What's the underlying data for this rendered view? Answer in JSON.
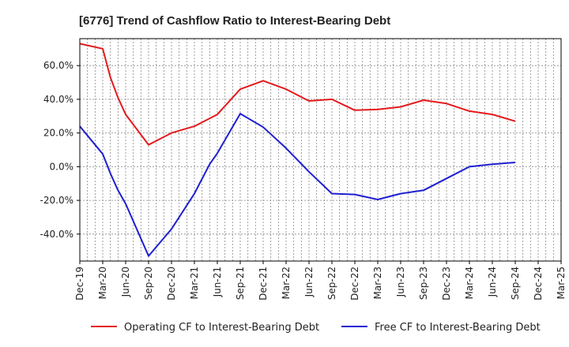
{
  "chart_data": {
    "type": "line",
    "title": "[6776]  Trend of Cashflow Ratio to Interest-Bearing Debt",
    "xlabel": "",
    "ylabel": "",
    "ylim": [
      -56,
      76
    ],
    "yticks": [
      -40,
      -20,
      0,
      20,
      40,
      60
    ],
    "ytick_labels": [
      "-40.0%",
      "-20.0%",
      "0.0%",
      "20.0%",
      "40.0%",
      "60.0%"
    ],
    "x_labels": [
      "Dec-19",
      "Mar-20",
      "Jun-20",
      "Sep-20",
      "Dec-20",
      "Mar-21",
      "Jun-21",
      "Sep-21",
      "Dec-21",
      "Mar-22",
      "Jun-22",
      "Sep-22",
      "Dec-22",
      "Mar-23",
      "Jun-23",
      "Sep-23",
      "Dec-23",
      "Mar-24",
      "Jun-24",
      "Sep-24",
      "Dec-24",
      "Mar-25"
    ],
    "x_months": [
      0,
      3,
      6,
      9,
      12,
      15,
      18,
      21,
      24,
      27,
      30,
      33,
      36,
      39,
      42,
      45,
      48,
      51,
      54,
      57,
      60,
      63
    ],
    "grid": true,
    "legend_position": "bottom",
    "series": [
      {
        "name": "Operating CF to Interest-Bearing Debt",
        "color": "#e41a1c",
        "points": [
          [
            0,
            73
          ],
          [
            3,
            70
          ],
          [
            4,
            53
          ],
          [
            5,
            41
          ],
          [
            6,
            31
          ],
          [
            9,
            13
          ],
          [
            12,
            20
          ],
          [
            15,
            24
          ],
          [
            18,
            31
          ],
          [
            21,
            46
          ],
          [
            24,
            51
          ],
          [
            27,
            46
          ],
          [
            30,
            39
          ],
          [
            33,
            40
          ],
          [
            36,
            33.5
          ],
          [
            39,
            34
          ],
          [
            42,
            35.5
          ],
          [
            45,
            39.5
          ],
          [
            48,
            37.5
          ],
          [
            51,
            33
          ],
          [
            54,
            31
          ],
          [
            57,
            27
          ]
        ]
      },
      {
        "name": "Free CF to Interest-Bearing Debt",
        "color": "#1f1fd1",
        "points": [
          [
            0,
            24
          ],
          [
            3,
            7.5
          ],
          [
            4,
            -4
          ],
          [
            5,
            -14
          ],
          [
            6,
            -22
          ],
          [
            9,
            -53
          ],
          [
            12,
            -37
          ],
          [
            15,
            -16
          ],
          [
            17,
            1.5
          ],
          [
            18,
            8
          ],
          [
            21,
            31.5
          ],
          [
            24,
            23.5
          ],
          [
            27,
            11
          ],
          [
            30,
            -3
          ],
          [
            33,
            -16
          ],
          [
            36,
            -16.5
          ],
          [
            39,
            -19.5
          ],
          [
            42,
            -16
          ],
          [
            45,
            -14
          ],
          [
            48,
            -7
          ],
          [
            51,
            0
          ],
          [
            54,
            1.5
          ],
          [
            57,
            2.5
          ]
        ]
      }
    ]
  }
}
